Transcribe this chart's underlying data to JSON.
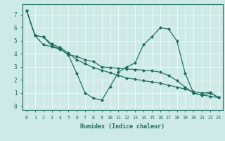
{
  "xlabel": "Humidex (Indice chaleur)",
  "xlim": [
    -0.5,
    23.5
  ],
  "ylim": [
    -0.3,
    7.8
  ],
  "xticks": [
    0,
    1,
    2,
    3,
    4,
    5,
    6,
    7,
    8,
    9,
    10,
    11,
    12,
    13,
    14,
    15,
    16,
    17,
    18,
    19,
    20,
    21,
    22,
    23
  ],
  "yticks": [
    0,
    1,
    2,
    3,
    4,
    5,
    6,
    7
  ],
  "bg_color": "#ceeae6",
  "line_color": "#1e6b5e",
  "grid_color": "#f0fafa",
  "line1": [
    7.3,
    5.4,
    5.3,
    4.6,
    4.4,
    3.9,
    2.5,
    1.0,
    0.6,
    0.45,
    1.5,
    2.6,
    3.0,
    3.3,
    4.7,
    5.3,
    6.0,
    5.9,
    5.0,
    2.5,
    1.0,
    0.85,
    0.75,
    0.65
  ],
  "line2": [
    7.3,
    5.4,
    4.7,
    4.55,
    4.35,
    3.95,
    3.8,
    3.55,
    3.4,
    3.0,
    2.95,
    2.9,
    2.85,
    2.8,
    2.75,
    2.7,
    2.6,
    2.35,
    1.95,
    1.45,
    1.0,
    0.85,
    1.0,
    0.65
  ],
  "line3": [
    7.3,
    5.4,
    5.3,
    4.75,
    4.5,
    4.05,
    3.55,
    3.25,
    2.95,
    2.75,
    2.55,
    2.35,
    2.15,
    2.05,
    1.95,
    1.85,
    1.75,
    1.6,
    1.45,
    1.3,
    1.1,
    1.0,
    1.05,
    0.65
  ]
}
